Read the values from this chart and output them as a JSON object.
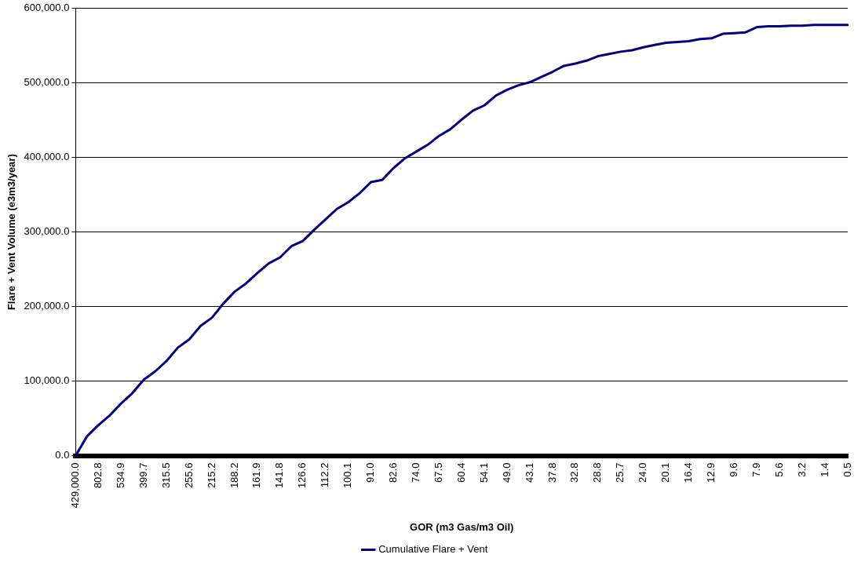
{
  "chart_data": {
    "type": "line",
    "xlabel": "GOR (m3 Gas/m3 Oil)",
    "ylabel": "Flare + Vent Volume (e3m3/year)",
    "categories": [
      "429,000.0",
      null,
      "802.8",
      null,
      "534.9",
      null,
      "399.7",
      null,
      "315.5",
      null,
      "255.6",
      null,
      "215.2",
      null,
      "188.2",
      null,
      "161.9",
      null,
      "141.8",
      null,
      "126.6",
      null,
      "112.2",
      null,
      "100.1",
      null,
      "91.0",
      null,
      "82.6",
      null,
      "74.0",
      null,
      "67.5",
      null,
      "60.4",
      null,
      "54.1",
      null,
      "49.0",
      null,
      "43.1",
      null,
      "37.8",
      null,
      "32.8",
      null,
      "28.8",
      null,
      "25.7",
      null,
      "24.0",
      null,
      "20.1",
      null,
      "16.4",
      null,
      "12.9",
      null,
      "9.6",
      null,
      "7.9",
      null,
      "5.6",
      null,
      "3.2",
      null,
      "1.4",
      null,
      "0.5"
    ],
    "series": [
      {
        "name": "Cumulative Flare + Vent",
        "color": "#000080",
        "values": [
          0,
          26000,
          41000,
          54000,
          70000,
          84000,
          102000,
          113000,
          127000,
          145000,
          156000,
          174000,
          185000,
          204000,
          220000,
          231000,
          245000,
          258000,
          266000,
          281000,
          288000,
          303000,
          317000,
          331000,
          340000,
          352000,
          367000,
          370000,
          386000,
          399000,
          408000,
          417000,
          429000,
          438000,
          451000,
          463000,
          470000,
          483000,
          491000,
          497000,
          501000,
          508000,
          515000,
          523000,
          526000,
          530000,
          536000,
          539000,
          542000,
          544000,
          548000,
          551000,
          554000,
          555000,
          556000,
          559000,
          560000,
          566000,
          567000,
          568000,
          575000,
          576000,
          576000,
          577000,
          577000,
          578000,
          578000,
          578000,
          578000
        ]
      }
    ],
    "ylim": [
      0,
      600000
    ],
    "yticks": [
      {
        "value": 0,
        "label": "0.0"
      },
      {
        "value": 100000,
        "label": "100,000.0"
      },
      {
        "value": 200000,
        "label": "200,000.0"
      },
      {
        "value": 300000,
        "label": "300,000.0"
      },
      {
        "value": 400000,
        "label": "400,000.0"
      },
      {
        "value": 500000,
        "label": "500,000.0"
      },
      {
        "value": 600000,
        "label": "600,000.0"
      }
    ],
    "grid": "y",
    "legend": "bottom",
    "marker": "none",
    "line_style": "solid"
  }
}
